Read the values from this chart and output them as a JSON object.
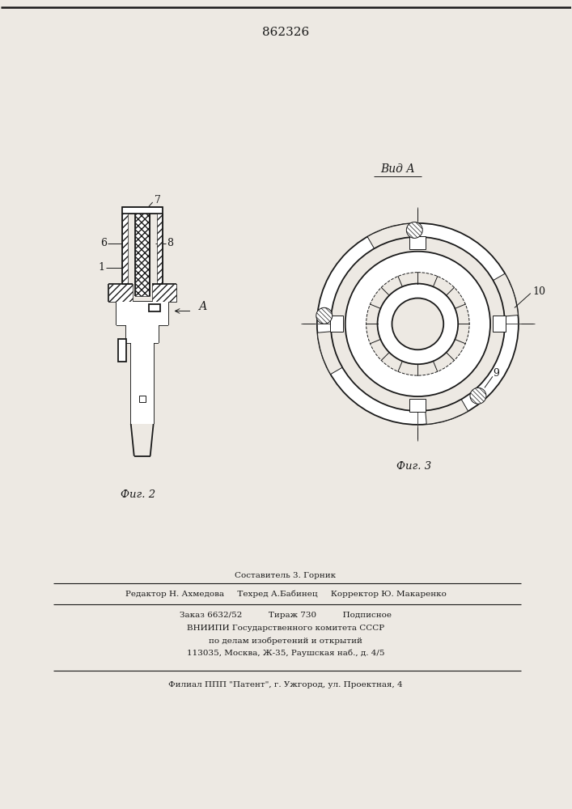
{
  "patent_number": "862326",
  "bg_color": "#ede9e3",
  "line_color": "#1a1a1a",
  "fig2_label": "Фиг. 2",
  "fig3_label": "Фиг. 3",
  "vid_a_label": "Вид А",
  "arrow_a_label": "А",
  "footer_lines": [
    "Составитель 3. Горник",
    "Редактор Н. Ахмедова     Техред А.Бабинец     Корректор Ю. Макаренко",
    "Заказ 6632/52          Тираж 730          Подписное",
    "ВНИИПИ Государственного комитета СССР",
    "по делам изобретений и открытий",
    "113035, Москва, Ж-35, Раушская наб., д. 4/5",
    "Филиал ППП \"Патент\", г. Ужгород, ул. Проектная, 4"
  ]
}
